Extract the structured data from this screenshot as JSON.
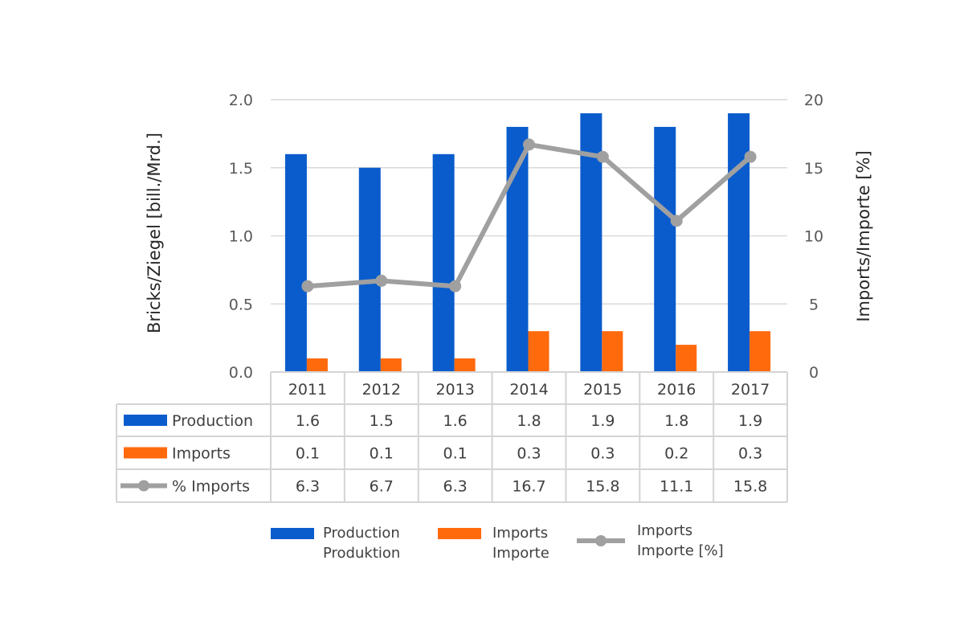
{
  "chart_data": {
    "type": "bar",
    "categories": [
      "2011",
      "2012",
      "2013",
      "2014",
      "2015",
      "2016",
      "2017"
    ],
    "series": [
      {
        "name": "Production",
        "type": "bar",
        "axis": "left",
        "color": "#0a5ccc",
        "values": [
          1.6,
          1.5,
          1.6,
          1.8,
          1.9,
          1.8,
          1.9
        ],
        "table_label": "Production",
        "legend": [
          "Production",
          "Produktion"
        ]
      },
      {
        "name": "Imports",
        "type": "bar",
        "axis": "left",
        "color": "#ff6a0d",
        "values": [
          0.1,
          0.1,
          0.1,
          0.3,
          0.3,
          0.2,
          0.3
        ],
        "table_label": "Imports",
        "legend": [
          "Imports",
          "Importe"
        ]
      },
      {
        "name": "% Imports",
        "type": "line",
        "axis": "right",
        "color": "#a0a0a0",
        "values": [
          6.3,
          6.7,
          6.3,
          16.7,
          15.8,
          11.1,
          15.8
        ],
        "table_label": "% Imports",
        "legend": [
          "Imports",
          "Importe [%]"
        ]
      }
    ],
    "table_values": [
      [
        "1.6",
        "1.5",
        "1.6",
        "1.8",
        "1.9",
        "1.8",
        "1.9"
      ],
      [
        "0.1",
        "0.1",
        "0.1",
        "0.3",
        "0.3",
        "0.2",
        "0.3"
      ],
      [
        "6.3",
        "6.7",
        "6.3",
        "16.7",
        "15.8",
        "11.1",
        "15.8"
      ]
    ],
    "ylabel": "Bricks/Ziegel [bill./Mrd.]",
    "y2label": "Imports/Importe [%]",
    "ylim": [
      0,
      2.0
    ],
    "y2lim": [
      0,
      20
    ],
    "yticks": [
      "0.0",
      "0.5",
      "1.0",
      "1.5",
      "2.0"
    ],
    "y2ticks": [
      "0",
      "5",
      "10",
      "15",
      "20"
    ],
    "grid": true,
    "legend_placement": "bottom",
    "data_table": true
  }
}
